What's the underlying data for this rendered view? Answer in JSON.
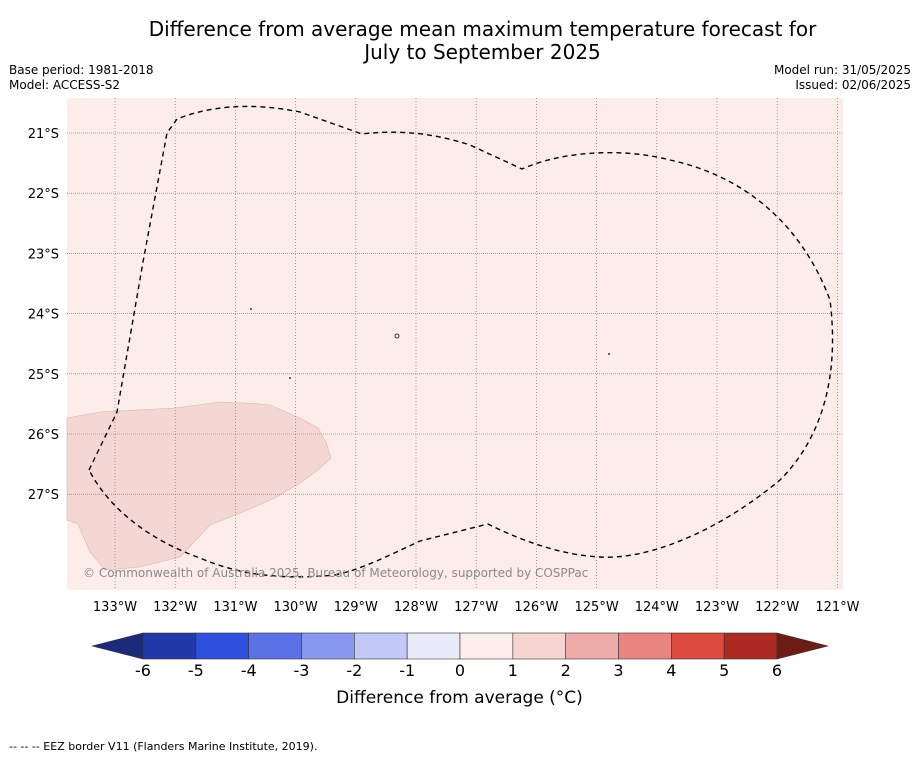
{
  "title": {
    "line1": "Difference from average mean maximum temperature forecast for",
    "line2": "July to September 2025"
  },
  "meta_left": {
    "base_period": "Base period: 1981-2018",
    "model": "Model: ACCESS-S2"
  },
  "meta_right": {
    "model_run": "Model run: 31/05/2025",
    "issued": "Issued: 02/06/2025"
  },
  "map": {
    "lat_labels": [
      "21°S",
      "22°S",
      "23°S",
      "24°S",
      "25°S",
      "26°S",
      "27°S"
    ],
    "lon_labels": [
      "133°W",
      "132°W",
      "131°W",
      "130°W",
      "129°W",
      "128°W",
      "127°W",
      "126°W",
      "125°W",
      "124°W",
      "123°W",
      "122°W",
      "121°W"
    ],
    "background_category": "0 to 1",
    "patch_category": "1 to 2",
    "copyright": "© Commonwealth of Australia 2025, Bureau of Meteorology, supported by COSPPac"
  },
  "colorbar": {
    "tick_labels": [
      "-6",
      "-5",
      "-4",
      "-3",
      "-2",
      "-1",
      "0",
      "1",
      "2",
      "3",
      "4",
      "5",
      "6"
    ],
    "colors": [
      "#2139a8",
      "#2f4fde",
      "#5b72e6",
      "#8898ee",
      "#c3c9f6",
      "#e9ebfb",
      "#fdeeec",
      "#f4d5d2",
      "#edaca7",
      "#e7857e",
      "#dc493f",
      "#ac2a22"
    ],
    "under_color": "#1c2a7a",
    "over_color": "#6e1c16",
    "label": "Difference from average ($^\\circ$C)",
    "label_display": "Difference from average (°C)"
  },
  "footer": "-- -- -- EEZ border V11 (Flanders Marine Institute, 2019).",
  "colors": {
    "map_background": "#fcecea",
    "patch": "#f4d6d3",
    "grid": "#8c5f76"
  }
}
